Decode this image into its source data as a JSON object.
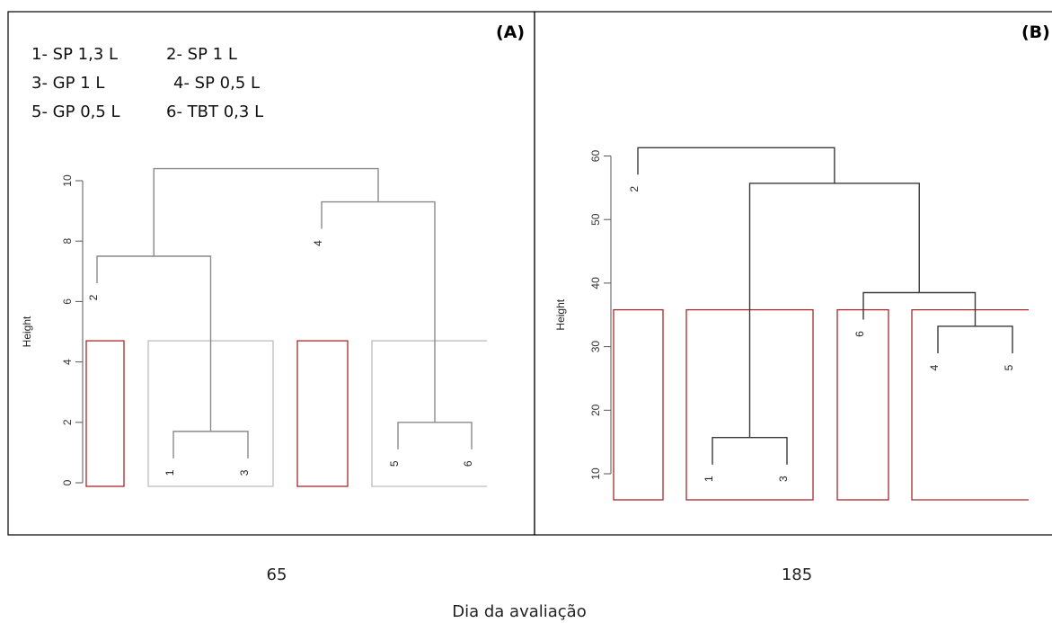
{
  "xlabel": "Dia da avaliação",
  "colors": {
    "tree_a": "#8a8a8a",
    "tree_b": "#3a3a3a",
    "cluster_box": "#a52a2a",
    "cluster_box_grey": "#bdbdbd",
    "axis": "#555555"
  },
  "legend": [
    [
      "1- SP 1,3 L",
      "2- SP 1 L"
    ],
    [
      "3- GP 1 L",
      "4- SP 0,5 L"
    ],
    [
      "5- GP 0,5 L",
      "6- TBT 0,3 L"
    ]
  ],
  "chart_data": [
    {
      "type": "dendrogram",
      "panel_label": "(A)",
      "day": "65",
      "ylabel": "Height",
      "yticks": [
        0,
        2,
        4,
        6,
        8,
        10
      ],
      "ylim": [
        0,
        10.5
      ],
      "leaf_order": [
        "2",
        "1",
        "3",
        "4",
        "5",
        "6"
      ],
      "merges": [
        {
          "join": [
            "1",
            "3"
          ],
          "height": 1.7
        },
        {
          "join": [
            "5",
            "6"
          ],
          "height": 2.0
        },
        {
          "join": [
            "2",
            "1+3"
          ],
          "height": 7.5
        },
        {
          "join": [
            "4",
            "5+6"
          ],
          "height": 9.3
        },
        {
          "join": [
            "2+1+3",
            "4+5+6"
          ],
          "height": 10.4
        }
      ],
      "cut_height": 4.7,
      "clusters": [
        [
          "2"
        ],
        [
          "1",
          "3"
        ],
        [
          "4"
        ],
        [
          "5",
          "6"
        ]
      ]
    },
    {
      "type": "dendrogram",
      "panel_label": "(B)",
      "day": "185",
      "ylabel": "Height",
      "yticks": [
        10,
        20,
        30,
        40,
        50,
        60
      ],
      "ylim": [
        6,
        62
      ],
      "leaf_order": [
        "2",
        "1",
        "3",
        "6",
        "4",
        "5"
      ],
      "merges": [
        {
          "join": [
            "1",
            "3"
          ],
          "height": 15.7
        },
        {
          "join": [
            "4",
            "5"
          ],
          "height": 33.2
        },
        {
          "join": [
            "6",
            "4+5"
          ],
          "height": 38.5
        },
        {
          "join": [
            "1+3",
            "6+4+5"
          ],
          "height": 55.7
        },
        {
          "join": [
            "2",
            "1+3+6+4+5"
          ],
          "height": 61.3
        }
      ],
      "cut_height": 35.8,
      "clusters": [
        [
          "2"
        ],
        [
          "1",
          "3"
        ],
        [
          "6"
        ],
        [
          "4",
          "5"
        ]
      ]
    }
  ]
}
